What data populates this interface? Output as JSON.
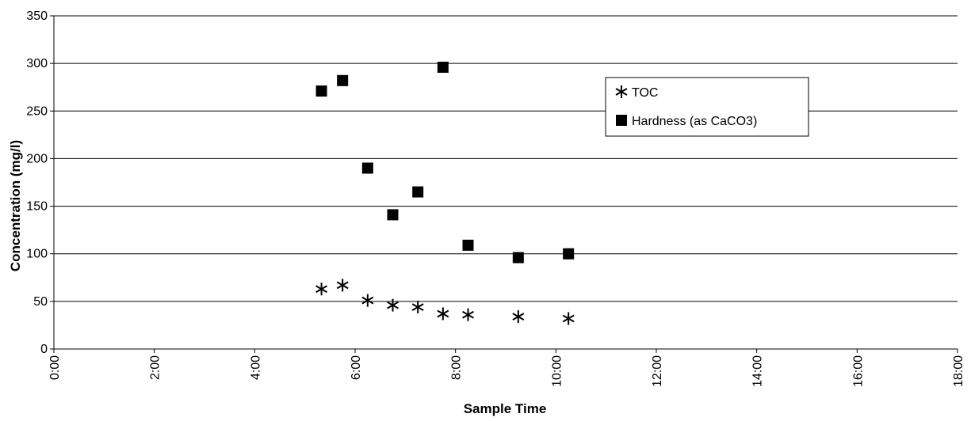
{
  "chart_data": {
    "type": "scatter",
    "xlabel": "Sample Time",
    "ylabel": "Concentration (mg/l)",
    "xlim": [
      0,
      18
    ],
    "ylim": [
      0,
      350
    ],
    "x_ticks": [
      0,
      2,
      4,
      6,
      8,
      10,
      12,
      14,
      16,
      18
    ],
    "x_tick_labels": [
      "0:00",
      "2:00",
      "4:00",
      "6:00",
      "8:00",
      "10:00",
      "12:00",
      "14:00",
      "16:00",
      "18:00"
    ],
    "y_ticks": [
      0,
      50,
      100,
      150,
      200,
      250,
      300,
      350
    ],
    "y_tick_labels": [
      "0",
      "50",
      "100",
      "150",
      "200",
      "250",
      "300",
      "350"
    ],
    "grid": "horizontal",
    "legend_position": "right",
    "series": [
      {
        "name": "TOC",
        "marker": "asterisk",
        "x": [
          5.33,
          5.75,
          6.25,
          6.75,
          7.25,
          7.75,
          8.25,
          9.25,
          10.25
        ],
        "y": [
          63,
          67,
          51,
          46,
          44,
          37,
          36,
          34,
          32
        ]
      },
      {
        "name": "Hardness (as CaCO3)",
        "marker": "square",
        "x": [
          5.33,
          5.75,
          6.25,
          6.75,
          7.25,
          7.75,
          8.25,
          9.25,
          10.25
        ],
        "y": [
          271,
          282,
          190,
          141,
          165,
          296,
          109,
          96,
          100
        ]
      }
    ]
  }
}
